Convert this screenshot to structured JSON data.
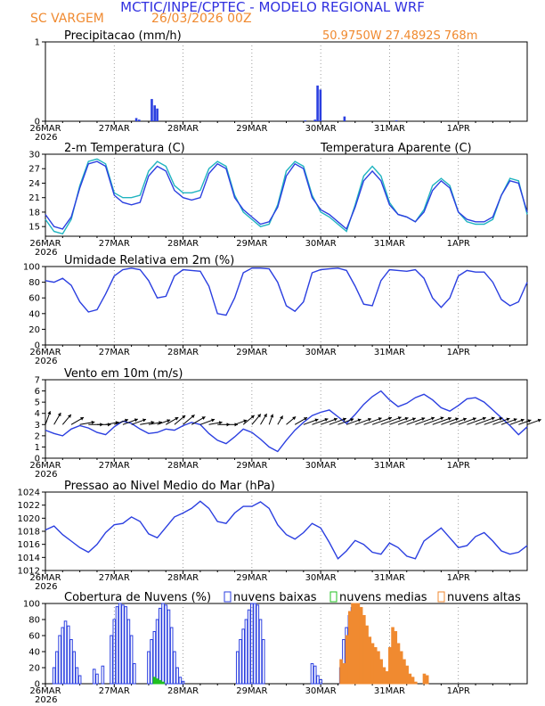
{
  "header": {
    "title": "MCTIC/INPE/CPTEC - MODELO REGIONAL WRF",
    "location": "SC VARGEM",
    "run": "26/03/2026 00Z",
    "coords": "50.9750W 27.4892S 768m"
  },
  "colors": {
    "title": "#3030e0",
    "accent": "#f08a30",
    "series_main": "#2b3fe0",
    "series_apparent": "#20b4c0",
    "wind_barb": "#000000",
    "cloud_low": "#2b3fe0",
    "cloud_mid": "#20c020",
    "cloud_high": "#f08a30"
  },
  "x_axis": {
    "days": [
      "26MAR",
      "27MAR",
      "28MAR",
      "29MAR",
      "30MAR",
      "31MAR",
      "1APR"
    ],
    "year": "2026"
  },
  "chart_data": [
    {
      "type": "bar",
      "id": "precip",
      "title": "Precipitacao (mm/h)",
      "xrange_hours": [
        0,
        168
      ],
      "ylim": [
        0,
        1
      ],
      "yticks": [
        "0",
        "1"
      ],
      "x": [
        31.7,
        32.7,
        37.1,
        38.1,
        39.0,
        90.6,
        94.0,
        94.9,
        95.9,
        104.3,
        122.4
      ],
      "values": [
        0.04,
        0.02,
        0.28,
        0.2,
        0.16,
        0.01,
        0.02,
        0.45,
        0.4,
        0.06,
        0.01
      ]
    },
    {
      "type": "line",
      "id": "temp",
      "title": "2-m Temperatura (C)",
      "legend_extra": "Temperatura Aparente (C)",
      "xrange_hours": [
        0,
        168
      ],
      "ylim": [
        13,
        30
      ],
      "yticks": [
        "15",
        "18",
        "21",
        "24",
        "27",
        "30"
      ],
      "x": [
        0,
        3,
        6,
        9,
        12,
        15,
        18,
        21,
        24,
        27,
        30,
        33,
        36,
        39,
        42,
        45,
        48,
        51,
        54,
        57,
        60,
        63,
        66,
        69,
        72,
        75,
        78,
        81,
        84,
        87,
        90,
        93,
        96,
        99,
        102,
        105,
        108,
        111,
        114,
        117,
        120,
        123,
        126,
        129,
        132,
        135,
        138,
        141,
        144,
        147,
        150,
        153,
        156,
        159,
        162,
        165,
        168
      ],
      "series": [
        {
          "name": "2-m Temperatura (C)",
          "values": [
            17.5,
            15.0,
            14.5,
            17.0,
            23.0,
            28.0,
            28.5,
            27.5,
            21.5,
            20.0,
            19.5,
            20.0,
            25.5,
            27.5,
            26.5,
            22.5,
            21.0,
            20.5,
            21.0,
            26.0,
            28.0,
            27.0,
            21.0,
            18.5,
            17.0,
            15.5,
            16.0,
            19.0,
            25.5,
            28.0,
            27.0,
            21.0,
            18.5,
            17.5,
            16.0,
            14.5,
            19.0,
            24.5,
            26.5,
            24.5,
            19.5,
            17.5,
            17.0,
            16.0,
            18.0,
            22.5,
            24.5,
            23.0,
            18.0,
            16.5,
            16.0,
            16.0,
            17.0,
            21.5,
            24.5,
            24.0,
            18.0
          ]
        },
        {
          "name": "Temperatura Aparente (C)",
          "values": [
            16.5,
            14.0,
            13.5,
            16.5,
            23.5,
            28.5,
            29.0,
            28.0,
            22.0,
            21.0,
            21.0,
            21.5,
            26.5,
            28.5,
            27.5,
            23.5,
            22.0,
            22.0,
            22.5,
            27.0,
            28.5,
            27.5,
            21.5,
            18.0,
            16.5,
            15.0,
            15.5,
            19.5,
            26.5,
            28.5,
            27.5,
            21.5,
            18.0,
            17.0,
            15.5,
            14.0,
            19.5,
            25.5,
            27.5,
            25.5,
            20.0,
            17.5,
            17.0,
            16.0,
            18.5,
            23.5,
            25.0,
            23.5,
            18.0,
            16.0,
            15.5,
            15.5,
            16.5,
            21.5,
            25.0,
            24.5,
            17.5
          ]
        }
      ]
    },
    {
      "type": "line",
      "id": "rh",
      "title": "Umidade Relativa em 2m (%)",
      "xrange_hours": [
        0,
        168
      ],
      "ylim": [
        0,
        100
      ],
      "yticks": [
        "0",
        "20",
        "40",
        "60",
        "80",
        "100"
      ],
      "x": [
        0,
        3,
        6,
        9,
        12,
        15,
        18,
        21,
        24,
        27,
        30,
        33,
        36,
        39,
        42,
        45,
        48,
        51,
        54,
        57,
        60,
        63,
        66,
        69,
        72,
        75,
        78,
        81,
        84,
        87,
        90,
        93,
        96,
        99,
        102,
        105,
        108,
        111,
        114,
        117,
        120,
        123,
        126,
        129,
        132,
        135,
        138,
        141,
        144,
        147,
        150,
        153,
        156,
        159,
        162,
        165,
        168
      ],
      "series": [
        {
          "name": "Umidade Relativa em 2m (%)",
          "values": [
            82,
            80,
            85,
            76,
            55,
            42,
            45,
            65,
            88,
            96,
            98,
            96,
            82,
            60,
            62,
            88,
            96,
            95,
            94,
            75,
            40,
            38,
            60,
            92,
            98,
            98,
            97,
            80,
            50,
            43,
            55,
            92,
            96,
            97,
            98,
            95,
            75,
            52,
            50,
            82,
            96,
            95,
            94,
            96,
            85,
            60,
            48,
            60,
            88,
            95,
            93,
            93,
            80,
            58,
            50,
            55,
            80
          ]
        }
      ]
    },
    {
      "type": "line",
      "id": "wind",
      "title": "Vento em 10m (m/s)",
      "xrange_hours": [
        0,
        168
      ],
      "ylim": [
        0,
        7
      ],
      "yticks": [
        "0",
        "1",
        "2",
        "3",
        "4",
        "5",
        "6",
        "7"
      ],
      "x": [
        0,
        3,
        6,
        9,
        12,
        15,
        18,
        21,
        24,
        27,
        30,
        33,
        36,
        39,
        42,
        45,
        48,
        51,
        54,
        57,
        60,
        63,
        66,
        69,
        72,
        75,
        78,
        81,
        84,
        87,
        90,
        93,
        96,
        99,
        102,
        105,
        108,
        111,
        114,
        117,
        120,
        123,
        126,
        129,
        132,
        135,
        138,
        141,
        144,
        147,
        150,
        153,
        156,
        159,
        162,
        165,
        168
      ],
      "series": [
        {
          "name": "Vento em 10m (m/s)",
          "values": [
            2.5,
            2.2,
            2.0,
            2.6,
            2.9,
            2.7,
            2.3,
            2.1,
            2.8,
            3.3,
            3.1,
            2.6,
            2.2,
            2.3,
            2.6,
            2.5,
            2.9,
            3.2,
            3.0,
            2.2,
            1.6,
            1.3,
            1.9,
            2.6,
            2.3,
            1.7,
            1.0,
            0.6,
            1.6,
            2.5,
            3.2,
            3.8,
            4.1,
            4.3,
            3.7,
            3.1,
            3.9,
            4.8,
            5.5,
            6.0,
            5.2,
            4.6,
            4.9,
            5.4,
            5.7,
            5.2,
            4.5,
            4.2,
            4.7,
            5.3,
            5.4,
            5.0,
            4.3,
            3.6,
            2.9,
            2.1,
            2.8
          ]
        }
      ],
      "wind_dir_deg": [
        200,
        210,
        220,
        240,
        260,
        270,
        270,
        260,
        250,
        250,
        250,
        260,
        260,
        250,
        240,
        230,
        230,
        240,
        250,
        260,
        270,
        270,
        250,
        230,
        220,
        210,
        200,
        210,
        230,
        240,
        250,
        250,
        250,
        250,
        250,
        250,
        250,
        250,
        250,
        250,
        250,
        250,
        250,
        250,
        250,
        250,
        250,
        250,
        250,
        250,
        250,
        250,
        250,
        250,
        250,
        250,
        250
      ]
    },
    {
      "type": "line",
      "id": "pressure",
      "title": "Pressao ao Nivel Medio do Mar (hPa)",
      "xrange_hours": [
        0,
        168
      ],
      "ylim": [
        1012,
        1024
      ],
      "yticks": [
        "1012",
        "1014",
        "1016",
        "1018",
        "1020",
        "1022",
        "1024"
      ],
      "x": [
        0,
        3,
        6,
        9,
        12,
        15,
        18,
        21,
        24,
        27,
        30,
        33,
        36,
        39,
        42,
        45,
        48,
        51,
        54,
        57,
        60,
        63,
        66,
        69,
        72,
        75,
        78,
        81,
        84,
        87,
        90,
        93,
        96,
        99,
        102,
        105,
        108,
        111,
        114,
        117,
        120,
        123,
        126,
        129,
        132,
        135,
        138,
        141,
        144,
        147,
        150,
        153,
        156,
        159,
        162,
        165,
        168
      ],
      "series": [
        {
          "name": "Pressao ao Nivel Medio do Mar (hPa)",
          "values": [
            1018.2,
            1018.8,
            1017.5,
            1016.5,
            1015.5,
            1014.8,
            1016.0,
            1017.8,
            1019.0,
            1019.2,
            1020.2,
            1019.5,
            1017.6,
            1017.0,
            1018.6,
            1020.2,
            1020.8,
            1021.5,
            1022.6,
            1021.5,
            1019.5,
            1019.2,
            1020.8,
            1021.8,
            1021.8,
            1022.5,
            1021.5,
            1019.0,
            1017.5,
            1016.8,
            1017.8,
            1019.2,
            1018.5,
            1016.3,
            1013.8,
            1015.0,
            1016.6,
            1016.0,
            1014.8,
            1014.5,
            1016.2,
            1015.5,
            1014.2,
            1013.8,
            1016.5,
            1017.5,
            1018.5,
            1017.0,
            1015.5,
            1015.8,
            1017.2,
            1017.8,
            1016.5,
            1015.0,
            1014.5,
            1014.8,
            1015.8
          ]
        }
      ]
    },
    {
      "type": "bar",
      "id": "clouds",
      "title": "Cobertura de Nuvens (%)",
      "xrange_hours": [
        0,
        168
      ],
      "ylim": [
        0,
        100
      ],
      "yticks": [
        "0",
        "20",
        "40",
        "60",
        "80",
        "100"
      ],
      "legend": [
        "nuvens baixas",
        "nuvens medias",
        "nuvens altas"
      ],
      "x": [
        3,
        4,
        5,
        6,
        7,
        8,
        9,
        10,
        11,
        12,
        17,
        18,
        20,
        23,
        24,
        25,
        26,
        27,
        28,
        29,
        30,
        31,
        36,
        37,
        38,
        39,
        40,
        41,
        42,
        43,
        44,
        45,
        46,
        47,
        48,
        67,
        68,
        69,
        70,
        71,
        72,
        73,
        74,
        75,
        76,
        77,
        78,
        79,
        80,
        81,
        82,
        83,
        84,
        85,
        86,
        87,
        88,
        89,
        90,
        91,
        92,
        93,
        94,
        95,
        96,
        97,
        98,
        99,
        100,
        101,
        102,
        103,
        104,
        105,
        106,
        107,
        108,
        109,
        110,
        111,
        112,
        113,
        114,
        115,
        116,
        117,
        118,
        119,
        120,
        121,
        122,
        123,
        124,
        125,
        126,
        127,
        128,
        129,
        130,
        131,
        132,
        133,
        134,
        135,
        136,
        137,
        138,
        139,
        140,
        141,
        142,
        143,
        144
      ],
      "series": [
        {
          "name": "nuvens baixas",
          "values": [
            20,
            40,
            60,
            70,
            78,
            72,
            55,
            40,
            20,
            10,
            18,
            12,
            22,
            60,
            80,
            96,
            100,
            98,
            96,
            80,
            60,
            25,
            40,
            55,
            65,
            80,
            94,
            100,
            98,
            92,
            70,
            40,
            20,
            8,
            3,
            40,
            55,
            68,
            80,
            92,
            100,
            100,
            98,
            80,
            55,
            0,
            0,
            0,
            0,
            0,
            0,
            0,
            0,
            0,
            0,
            0,
            0,
            0,
            0,
            0,
            0,
            25,
            22,
            10,
            5,
            0,
            0,
            0,
            0,
            0,
            0,
            20,
            55,
            70,
            85,
            95,
            100,
            98,
            90,
            80,
            60,
            40,
            30,
            25,
            15,
            10,
            5,
            3,
            0,
            0,
            0,
            0,
            0,
            0,
            0,
            0,
            0,
            0,
            0,
            0,
            0,
            0,
            0,
            0,
            0,
            0,
            0,
            0,
            0,
            0,
            0,
            0,
            0
          ]
        },
        {
          "name": "nuvens medias",
          "values": [
            0,
            0,
            0,
            0,
            0,
            0,
            0,
            0,
            0,
            0,
            0,
            0,
            0,
            0,
            0,
            0,
            0,
            0,
            0,
            0,
            0,
            0,
            0,
            0,
            8,
            6,
            4,
            2,
            0,
            0,
            0,
            0,
            0,
            0,
            0,
            0,
            0,
            0,
            0,
            0,
            0,
            0,
            0,
            0,
            0,
            0,
            0,
            0,
            0,
            0,
            0,
            0,
            0,
            0,
            0,
            0,
            0,
            0,
            0,
            0,
            0,
            0,
            0,
            0,
            0,
            0,
            0,
            0,
            0,
            0,
            0,
            0,
            0,
            0,
            0,
            0,
            0,
            0,
            0,
            0,
            0,
            0,
            0,
            0,
            0,
            0,
            0,
            0,
            0,
            0,
            0,
            0,
            0,
            0,
            0,
            0,
            0,
            0,
            0,
            0,
            0,
            0,
            0,
            0,
            0,
            0,
            0,
            0,
            0,
            0,
            0,
            0,
            0
          ]
        },
        {
          "name": "nuvens altas",
          "values": [
            0,
            0,
            0,
            0,
            0,
            0,
            0,
            0,
            0,
            0,
            0,
            0,
            0,
            0,
            0,
            0,
            0,
            0,
            0,
            0,
            0,
            0,
            0,
            0,
            0,
            0,
            0,
            0,
            0,
            0,
            0,
            0,
            0,
            0,
            0,
            0,
            0,
            0,
            0,
            0,
            0,
            0,
            0,
            0,
            0,
            0,
            0,
            0,
            0,
            0,
            0,
            0,
            0,
            0,
            0,
            0,
            0,
            0,
            0,
            0,
            0,
            0,
            0,
            0,
            0,
            0,
            0,
            0,
            0,
            0,
            0,
            30,
            25,
            60,
            90,
            100,
            100,
            100,
            95,
            85,
            72,
            58,
            50,
            45,
            40,
            30,
            20,
            15,
            45,
            70,
            65,
            50,
            40,
            30,
            22,
            12,
            8,
            2,
            0,
            0,
            12,
            10,
            0,
            0,
            0,
            0,
            0,
            0,
            0,
            0,
            0,
            0,
            0
          ]
        }
      ]
    }
  ]
}
